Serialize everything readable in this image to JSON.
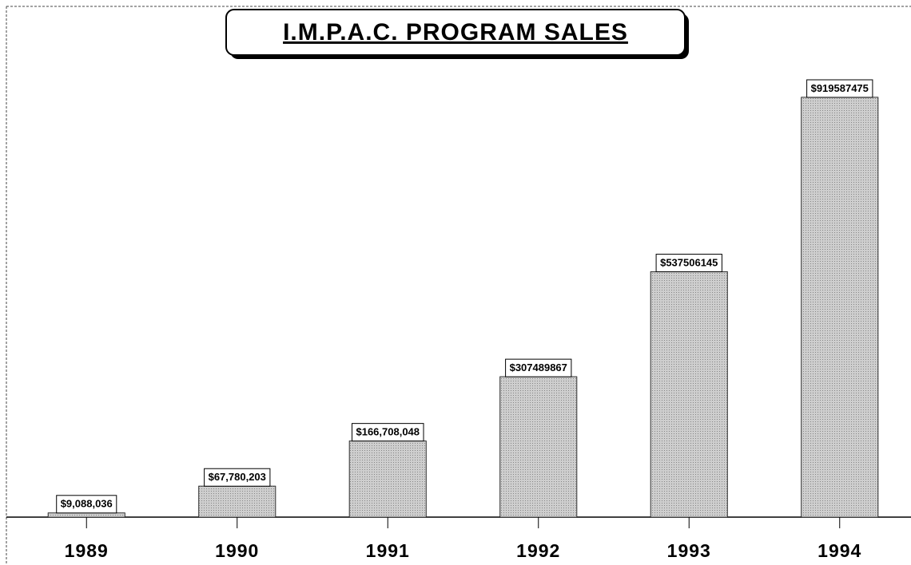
{
  "chart_data": {
    "type": "bar",
    "title": "I.M.P.A.C. PROGRAM SALES",
    "categories": [
      "1989",
      "1990",
      "1991",
      "1992",
      "1993",
      "1994"
    ],
    "values": [
      9088036,
      67780203,
      166708048,
      307489867,
      537506145,
      919587475
    ],
    "value_labels": [
      "$9,088,036",
      "$67,780,203",
      "$166,708,048",
      "$307489867",
      "$537506145",
      "$919587475"
    ],
    "color": "#b4b4b4",
    "ylim": [
      0,
      1000000000
    ]
  }
}
